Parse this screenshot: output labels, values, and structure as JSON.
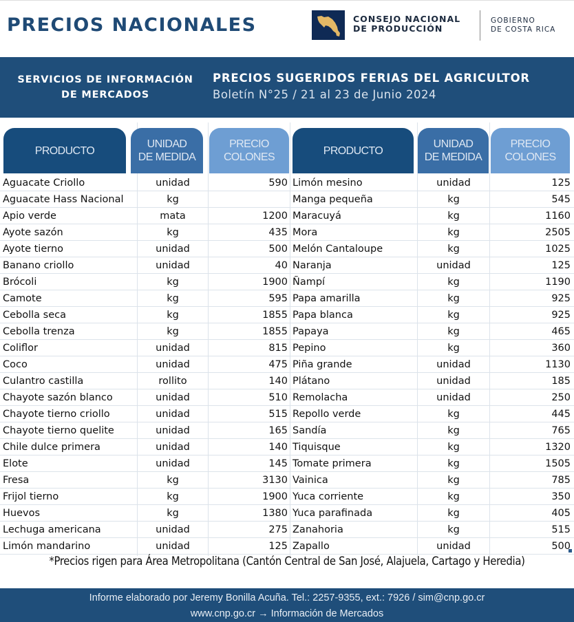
{
  "header": {
    "title": "PRECIOS NACIONALES",
    "org_line1": "CONSEJO NACIONAL",
    "org_line2": "DE PRODUCCIÓN",
    "gov_line1": "GOBIERNO",
    "gov_line2": "DE COSTA RICA",
    "logo_icon": "costa-rica-map-icon"
  },
  "banner": {
    "service_line1": "SERVICIOS DE INFORMACIÓN",
    "service_line2": "DE MERCADOS",
    "headline": "PRECIOS SUGERIDOS FERIAS DEL AGRICULTOR",
    "bulletin": "Boletín N°25 / 21 al 23 de Junio 2024"
  },
  "columns": {
    "product": "PRODUCTO",
    "unit_line1": "UNIDAD",
    "unit_line2": "DE MEDIDA",
    "price_line1": "PRECIO",
    "price_line2": "COLONES"
  },
  "colors": {
    "brand_dark": "#1f4e7a",
    "header_product": "#174c7c",
    "header_unit": "#3a6ea6",
    "header_price": "#6e9ed3",
    "logo_gold": "#e3b866",
    "logo_navy": "#0f2a55"
  },
  "table_left": [
    {
      "product": "Aguacate Criollo",
      "unit": "unidad",
      "price": "590"
    },
    {
      "product": "Aguacate Hass Nacional",
      "unit": "kg",
      "price": ""
    },
    {
      "product": "Apio verde",
      "unit": "mata",
      "price": "1200"
    },
    {
      "product": "Ayote sazón",
      "unit": "kg",
      "price": "435"
    },
    {
      "product": "Ayote tierno",
      "unit": "unidad",
      "price": "500"
    },
    {
      "product": "Banano criollo",
      "unit": "unidad",
      "price": "40"
    },
    {
      "product": "Brócoli",
      "unit": "kg",
      "price": "1900"
    },
    {
      "product": "Camote",
      "unit": "kg",
      "price": "595"
    },
    {
      "product": "Cebolla seca",
      "unit": "kg",
      "price": "1855"
    },
    {
      "product": "Cebolla trenza",
      "unit": "kg",
      "price": "1855"
    },
    {
      "product": "Coliflor",
      "unit": "unidad",
      "price": "815"
    },
    {
      "product": "Coco",
      "unit": "unidad",
      "price": "475"
    },
    {
      "product": "Culantro castilla",
      "unit": "rollito",
      "price": "140"
    },
    {
      "product": "Chayote sazón blanco",
      "unit": "unidad",
      "price": "510"
    },
    {
      "product": "Chayote tierno criollo",
      "unit": "unidad",
      "price": "515"
    },
    {
      "product": "Chayote tierno quelite",
      "unit": "unidad",
      "price": "165"
    },
    {
      "product": "Chile dulce primera",
      "unit": "unidad",
      "price": "140"
    },
    {
      "product": "Elote",
      "unit": "unidad",
      "price": "145"
    },
    {
      "product": "Fresa",
      "unit": "kg",
      "price": "3130"
    },
    {
      "product": "Frijol tierno",
      "unit": "kg",
      "price": "1900"
    },
    {
      "product": "Huevos",
      "unit": "kg",
      "price": "1380"
    },
    {
      "product": "Lechuga americana",
      "unit": "unidad",
      "price": "275"
    },
    {
      "product": "Limón mandarino",
      "unit": "unidad",
      "price": "125"
    }
  ],
  "table_right": [
    {
      "product": "Limón mesino",
      "unit": "unidad",
      "price": "125"
    },
    {
      "product": "Manga pequeña",
      "unit": "kg",
      "price": "545"
    },
    {
      "product": "Maracuyá",
      "unit": "kg",
      "price": "1160"
    },
    {
      "product": "Mora",
      "unit": "kg",
      "price": "2505"
    },
    {
      "product": "Melón Cantaloupe",
      "unit": "kg",
      "price": "1025"
    },
    {
      "product": "Naranja",
      "unit": "unidad",
      "price": "125"
    },
    {
      "product": "Ñampí",
      "unit": "kg",
      "price": "1190"
    },
    {
      "product": "Papa amarilla",
      "unit": "kg",
      "price": "925"
    },
    {
      "product": "Papa blanca",
      "unit": "kg",
      "price": "925"
    },
    {
      "product": "Papaya",
      "unit": "kg",
      "price": "465"
    },
    {
      "product": "Pepino",
      "unit": "kg",
      "price": "360"
    },
    {
      "product": "Piña grande",
      "unit": "unidad",
      "price": "1130"
    },
    {
      "product": "Plátano",
      "unit": "unidad",
      "price": "185"
    },
    {
      "product": "Remolacha",
      "unit": "unidad",
      "price": "250"
    },
    {
      "product": "Repollo verde",
      "unit": "kg",
      "price": "445"
    },
    {
      "product": "Sandía",
      "unit": "kg",
      "price": "765"
    },
    {
      "product": "Tiquisque",
      "unit": "kg",
      "price": "1320"
    },
    {
      "product": "Tomate primera",
      "unit": "kg",
      "price": "1505"
    },
    {
      "product": "Vainica",
      "unit": "kg",
      "price": "785"
    },
    {
      "product": "Yuca corriente",
      "unit": "kg",
      "price": "350"
    },
    {
      "product": "Yuca parafinada",
      "unit": "kg",
      "price": "405"
    },
    {
      "product": "Zanahoria",
      "unit": "kg",
      "price": "515"
    },
    {
      "product": "Zapallo",
      "unit": "unidad",
      "price": "500"
    }
  ],
  "note": "*Precios rigen para Área Metropolitana (Cantón Central de San José, Alajuela, Cartago y Heredia)",
  "footer": {
    "line1": "Informe elaborado por Jeremy Bonilla Acuña. Tel.: 2257-9355, ext.: 7926 / sim@cnp.go.cr",
    "line2": "www.cnp.go.cr  → Información de Mercados"
  }
}
